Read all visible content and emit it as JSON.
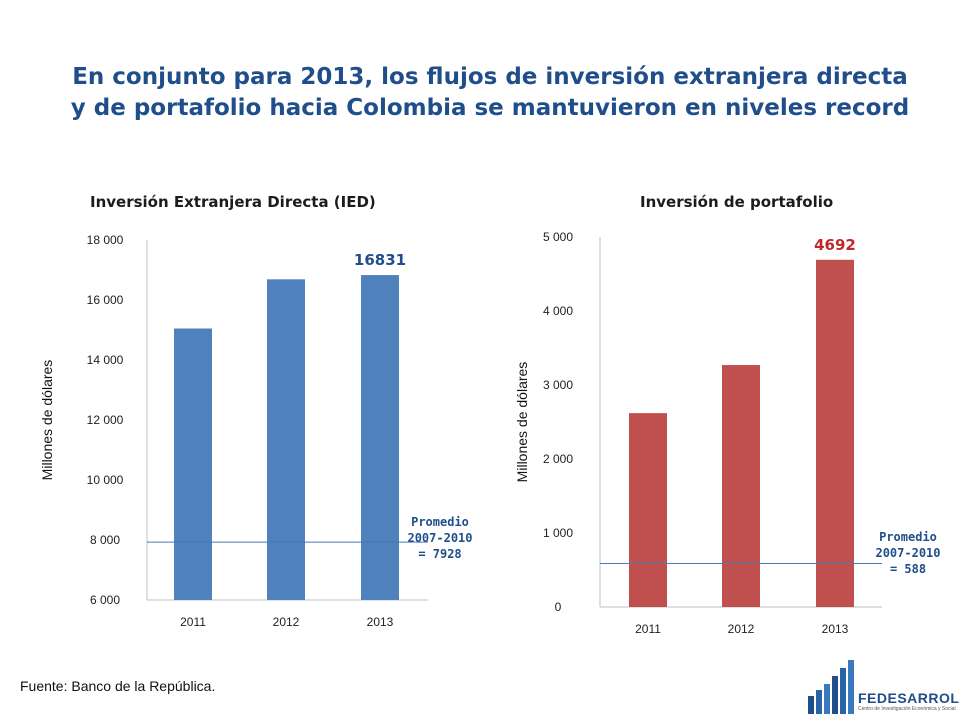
{
  "title": {
    "line1": "En conjunto para 2013, los flujos de inversión extranjera directa",
    "line2": "y de portafolio hacia Colombia se mantuvieron en niveles record"
  },
  "source": "Fuente: Banco de la República.",
  "logo": {
    "name": "FEDESARROLLO",
    "subtitle": "Centro de Investigación Económica y Social"
  },
  "chart_data": [
    {
      "type": "bar",
      "title": "Inversión Extranjera Directa (IED)",
      "ylabel": "Millones de dólares",
      "categories": [
        "2011",
        "2012",
        "2013"
      ],
      "values": [
        15050,
        16690,
        16831
      ],
      "ylim": [
        6000,
        18000
      ],
      "yticks": [
        6000,
        8000,
        10000,
        12000,
        14000,
        16000,
        18000
      ],
      "ytick_labels": [
        "6 000",
        "8 000",
        "10 000",
        "12 000",
        "14 000",
        "16 000",
        "18 000"
      ],
      "bar_color": "#4f81bd",
      "data_label": {
        "category": "2013",
        "text": "16831",
        "color": "#1f4e8a"
      },
      "reference_line": {
        "value": 7928,
        "label_lines": [
          "Promedio",
          "2007-2010",
          "= 7928"
        ],
        "color": "#4a7ab5"
      },
      "grid": false
    },
    {
      "type": "bar",
      "title": "Inversión de portafolio",
      "ylabel": "Millones de dólares",
      "categories": [
        "2011",
        "2012",
        "2013"
      ],
      "values": [
        2620,
        3270,
        4692
      ],
      "ylim": [
        0,
        5000
      ],
      "yticks": [
        0,
        1000,
        2000,
        3000,
        4000,
        5000
      ],
      "ytick_labels": [
        "0",
        "1 000",
        "2 000",
        "3 000",
        "4 000",
        "5 000"
      ],
      "bar_color": "#c0504d",
      "data_label": {
        "category": "2013",
        "text": "4692",
        "color": "#c0282d"
      },
      "reference_line": {
        "value": 588,
        "label_lines": [
          "Promedio",
          "2007-2010",
          "= 588"
        ],
        "color": "#4a7ab5"
      },
      "grid": false
    }
  ]
}
